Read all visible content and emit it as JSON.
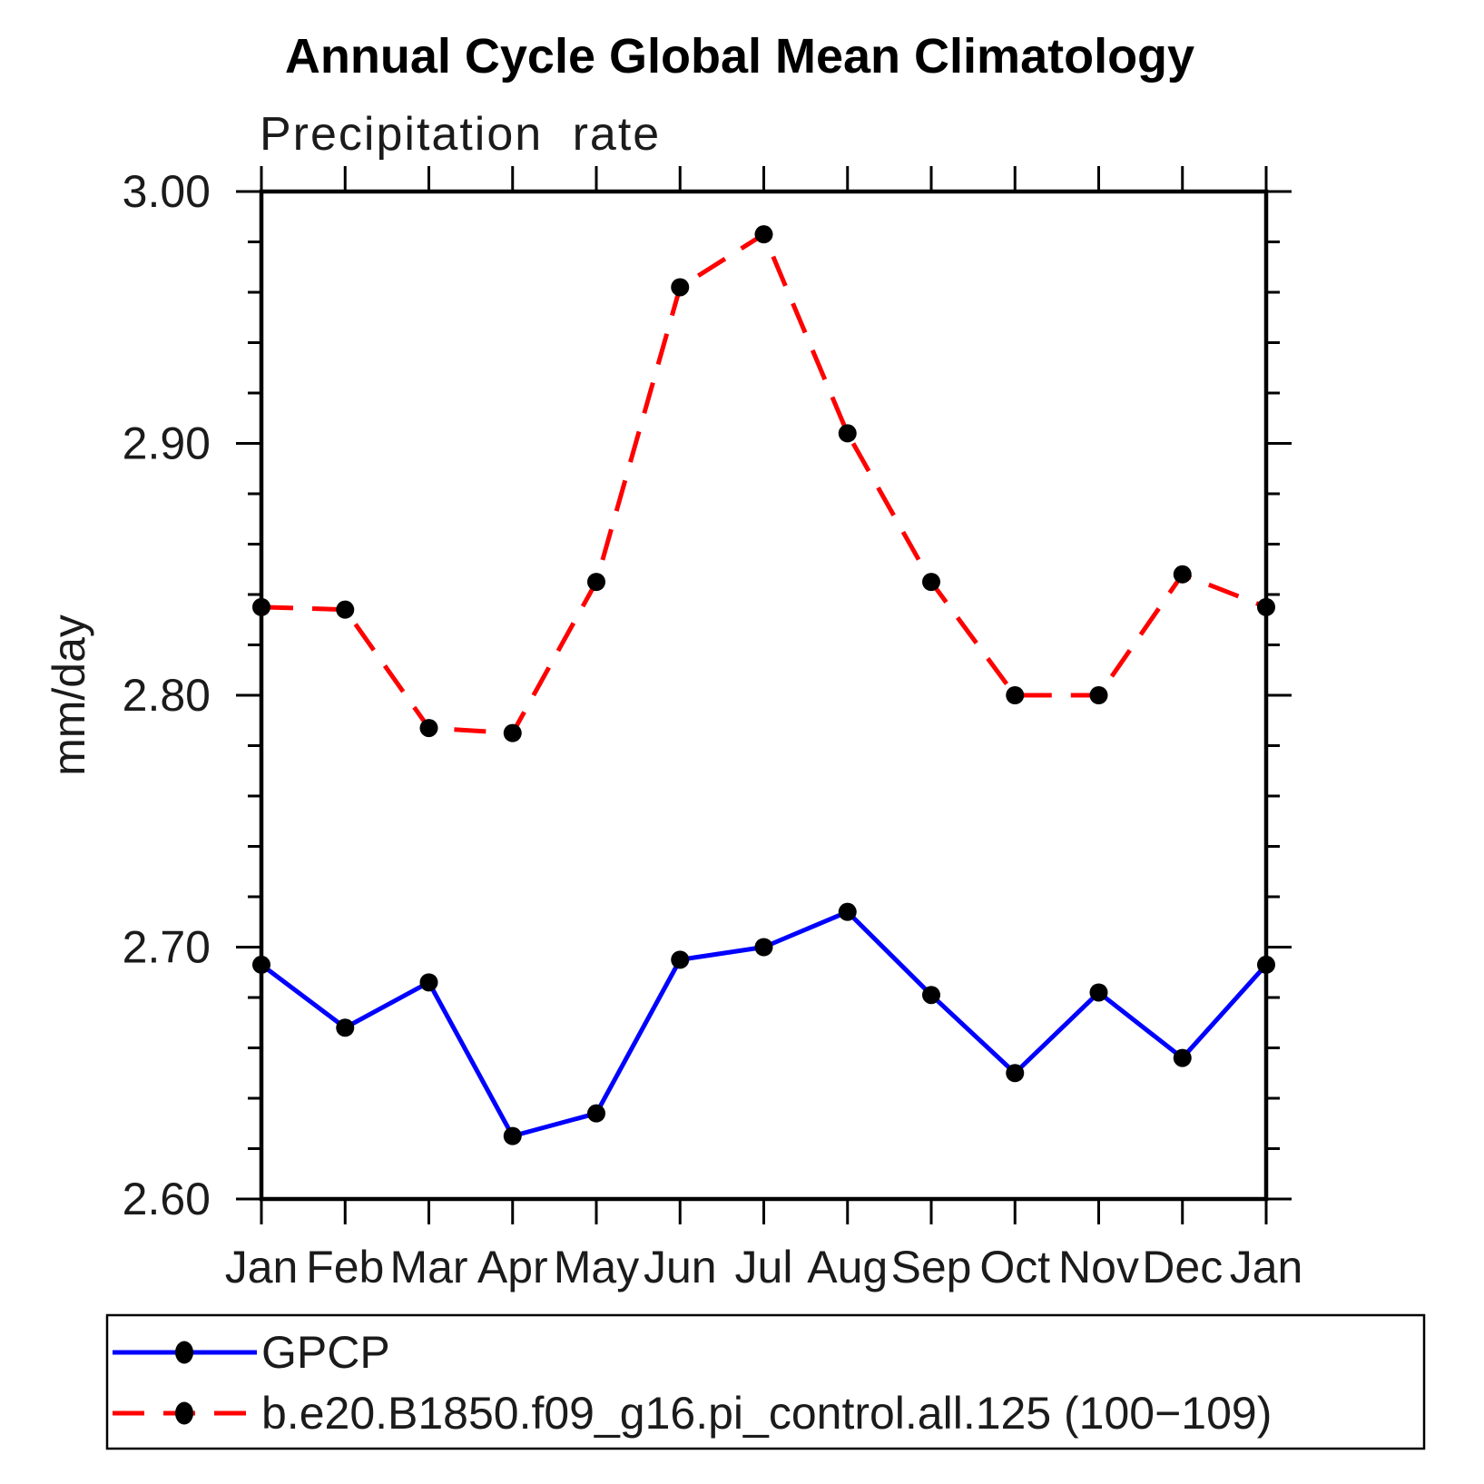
{
  "title": "Annual Cycle Global Mean Climatology",
  "subtitle": "Precipitation rate",
  "ylabel": "mm/day",
  "chart_data": {
    "type": "line",
    "title": "Annual Cycle Global Mean Climatology",
    "subtitle": "Precipitation rate",
    "xlabel": "",
    "ylabel": "mm/day",
    "categories": [
      "Jan",
      "Feb",
      "Mar",
      "Apr",
      "May",
      "Jun",
      "Jul",
      "Aug",
      "Sep",
      "Oct",
      "Nov",
      "Dec",
      "Jan"
    ],
    "series": [
      {
        "name": "GPCP",
        "color": "#0000ff",
        "line_style": "solid",
        "marker": "filled-circle",
        "marker_color": "#000000",
        "values": [
          2.693,
          2.668,
          2.686,
          2.625,
          2.634,
          2.695,
          2.7,
          2.714,
          2.681,
          2.65,
          2.682,
          2.656,
          2.693
        ]
      },
      {
        "name": "b.e20.B1850.f09_g16.pi_control.all.125 (100−109)",
        "color": "#ff0000",
        "line_style": "dashed",
        "marker": "filled-circle",
        "marker_color": "#000000",
        "values": [
          2.835,
          2.834,
          2.787,
          2.785,
          2.845,
          2.962,
          2.983,
          2.904,
          2.845,
          2.8,
          2.8,
          2.848,
          2.835
        ]
      }
    ],
    "ylim": [
      2.6,
      3.0
    ],
    "ytick_labels": [
      "3.00",
      "2.90",
      "2.80",
      "2.70",
      "2.60"
    ],
    "ytick_major_values": [
      3.0,
      2.9,
      2.8,
      2.7,
      2.6
    ],
    "ytick_minor_step": 0.02,
    "grid": false,
    "legend_position": "bottom",
    "tick_direction": "out"
  }
}
